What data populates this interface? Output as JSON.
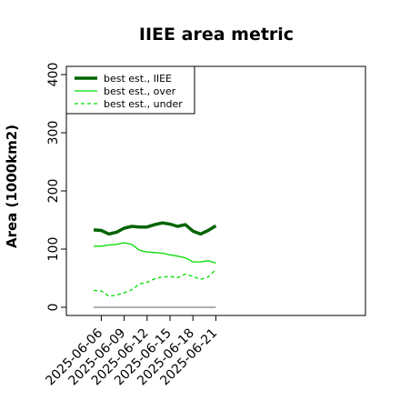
{
  "chart_data": {
    "type": "line",
    "title": "IIEE area metric",
    "xlabel": "",
    "ylabel": "Area (1000km2)",
    "ylim": [
      0,
      400
    ],
    "y_ticks": [
      0,
      100,
      200,
      300,
      400
    ],
    "x": [
      "2025-06-05",
      "2025-06-06",
      "2025-06-07",
      "2025-06-08",
      "2025-06-09",
      "2025-06-10",
      "2025-06-11",
      "2025-06-12",
      "2025-06-13",
      "2025-06-14",
      "2025-06-15",
      "2025-06-16",
      "2025-06-17",
      "2025-06-18",
      "2025-06-19",
      "2025-06-20",
      "2025-06-21"
    ],
    "x_tick_labels": [
      "2025-06-06",
      "2025-06-09",
      "2025-06-12",
      "2025-06-15",
      "2025-06-18",
      "2025-06-21"
    ],
    "baseline": 0,
    "legend_position": "top-left",
    "series": [
      {
        "name": "best est., IIEE",
        "color": "#006400",
        "style": "solid",
        "width": "thick",
        "values": [
          133,
          132,
          126,
          129,
          136,
          139,
          138,
          138,
          142,
          145,
          143,
          139,
          142,
          131,
          126,
          132,
          140
        ]
      },
      {
        "name": "best est., over",
        "color": "#00dd00",
        "style": "solid",
        "width": "thin",
        "values": [
          105,
          105,
          107,
          108,
          111,
          108,
          98,
          95,
          94,
          93,
          90,
          88,
          85,
          78,
          78,
          80,
          76
        ]
      },
      {
        "name": "best est., under",
        "color": "#00dd00",
        "style": "dashed",
        "width": "thin",
        "values": [
          29,
          28,
          19,
          21,
          25,
          30,
          40,
          43,
          49,
          52,
          53,
          51,
          57,
          53,
          48,
          52,
          65
        ]
      }
    ]
  }
}
